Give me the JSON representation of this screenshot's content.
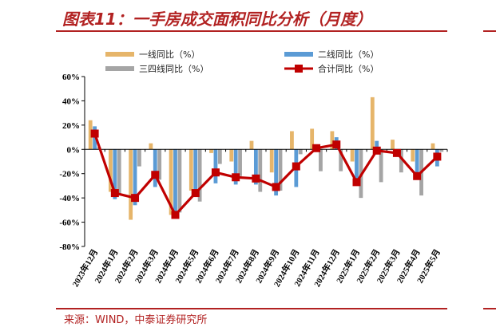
{
  "page": {
    "title": "图表11：一手房成交面积同比分析（月度）",
    "source": "来源：WIND，中泰证券研究所"
  },
  "colors": {
    "accent": "#b22222",
    "series1": "#e6b56a",
    "series2": "#5b9bd5",
    "series3": "#a5a5a5",
    "total": "#c00000"
  },
  "chart_data": {
    "type": "bar",
    "categories": [
      "2023年12月",
      "2024年1月",
      "2024年2月",
      "2024年3月",
      "2024年4月",
      "2024年5月",
      "2024年6月",
      "2024年7月",
      "2024年8月",
      "2024年9月",
      "2024年10月",
      "2024年11月",
      "2024年12月",
      "2025年1月",
      "2025年2月",
      "2025年3月",
      "2025年4月",
      "2025年5月"
    ],
    "series": [
      {
        "name": "一线同比（%）",
        "values": [
          24,
          -35,
          -58,
          5,
          -54,
          -34,
          -3,
          -10,
          7,
          -19,
          15,
          17,
          15,
          -10,
          43,
          8,
          -10,
          5
        ]
      },
      {
        "name": "二线同比（%）",
        "values": [
          19,
          -41,
          -46,
          -31,
          -57,
          -36,
          -28,
          -29,
          -29,
          -38,
          -31,
          -2,
          10,
          -27,
          7,
          -4,
          -20,
          -14
        ]
      },
      {
        "name": "三四线同比（%）",
        "values": [
          2,
          -38,
          -14,
          -25,
          -52,
          -43,
          -12,
          -22,
          -35,
          -34,
          -4,
          -18,
          -18,
          -40,
          -27,
          -19,
          -38,
          -2
        ]
      },
      {
        "name": "合计同比（%）",
        "type": "line",
        "values": [
          13,
          -36,
          -40,
          -21,
          -54,
          -36,
          -19,
          -23,
          -24,
          -31,
          -14,
          1,
          4,
          -27,
          -1,
          -3,
          -22,
          -6
        ]
      }
    ],
    "ylim": [
      -80,
      60
    ],
    "yticks": [
      "60%",
      "40%",
      "20%",
      "0%",
      "-20%",
      "-40%",
      "-60%",
      "-80%"
    ],
    "ytick_values": [
      60,
      40,
      20,
      0,
      -20,
      -40,
      -60,
      -80
    ],
    "legend_position": "top"
  }
}
